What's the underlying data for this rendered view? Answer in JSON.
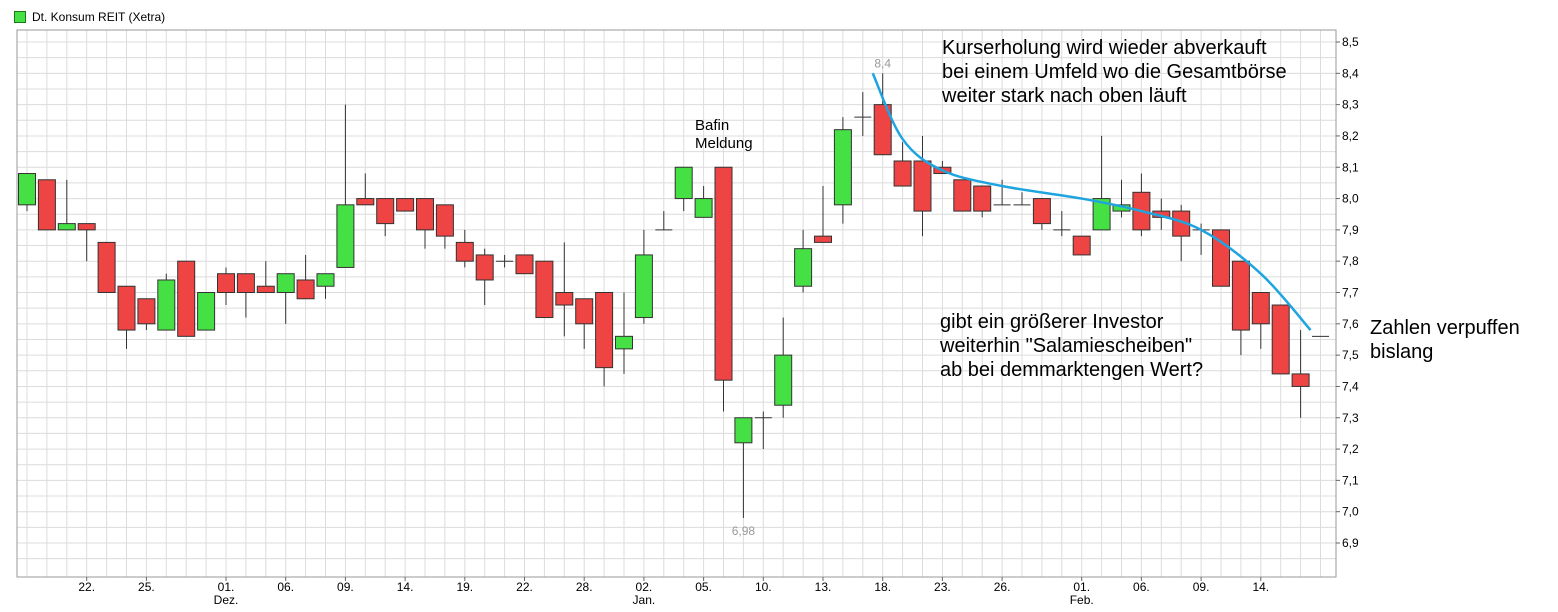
{
  "chart_data": {
    "type": "candlestick",
    "legend": {
      "label": "Dt. Konsum REIT (Xetra)",
      "color": "#44e044"
    },
    "ylim": [
      6.83,
      8.57
    ],
    "yticks": [
      "8,5",
      "8,4",
      "8,3",
      "8,2",
      "8,1",
      "8,0",
      "7,9",
      "7,8",
      "7,7",
      "7,6",
      "7,5",
      "7,4",
      "7,3",
      "7,2",
      "7,1",
      "7,0",
      "6,9"
    ],
    "ytick_values": [
      8.5,
      8.4,
      8.3,
      8.2,
      8.1,
      8.0,
      7.9,
      7.8,
      7.7,
      7.6,
      7.5,
      7.4,
      7.3,
      7.2,
      7.1,
      7.0,
      6.9
    ],
    "xticks": [
      {
        "i": 3,
        "label": "22."
      },
      {
        "i": 6,
        "label": "25."
      },
      {
        "i": 10,
        "label": "01.",
        "sub": "Dez."
      },
      {
        "i": 13,
        "label": "06."
      },
      {
        "i": 16,
        "label": "09."
      },
      {
        "i": 19,
        "label": "14."
      },
      {
        "i": 22,
        "label": "19."
      },
      {
        "i": 25,
        "label": "22."
      },
      {
        "i": 28,
        "label": "28."
      },
      {
        "i": 31,
        "label": "02.",
        "sub": "Jan."
      },
      {
        "i": 34,
        "label": "05."
      },
      {
        "i": 37,
        "label": "10."
      },
      {
        "i": 40,
        "label": "13."
      },
      {
        "i": 43,
        "label": "18."
      },
      {
        "i": 46,
        "label": "23."
      },
      {
        "i": 49,
        "label": "26."
      },
      {
        "i": 53,
        "label": "01.",
        "sub": "Feb."
      },
      {
        "i": 56,
        "label": "06."
      },
      {
        "i": 59,
        "label": "09."
      },
      {
        "i": 62,
        "label": "14."
      }
    ],
    "candles": [
      {
        "o": 7.98,
        "h": 8.08,
        "l": 7.96,
        "c": 8.08
      },
      {
        "o": 8.06,
        "h": 8.06,
        "l": 7.9,
        "c": 7.9
      },
      {
        "o": 7.9,
        "h": 8.06,
        "l": 7.9,
        "c": 7.92
      },
      {
        "o": 7.92,
        "h": 7.92,
        "l": 7.8,
        "c": 7.9
      },
      {
        "o": 7.86,
        "h": 7.86,
        "l": 7.7,
        "c": 7.7
      },
      {
        "o": 7.72,
        "h": 7.72,
        "l": 7.52,
        "c": 7.58
      },
      {
        "o": 7.68,
        "h": 7.68,
        "l": 7.58,
        "c": 7.6
      },
      {
        "o": 7.58,
        "h": 7.76,
        "l": 7.58,
        "c": 7.74
      },
      {
        "o": 7.8,
        "h": 7.8,
        "l": 7.56,
        "c": 7.56
      },
      {
        "o": 7.58,
        "h": 7.7,
        "l": 7.58,
        "c": 7.7
      },
      {
        "o": 7.76,
        "h": 7.78,
        "l": 7.66,
        "c": 7.7
      },
      {
        "o": 7.76,
        "h": 7.76,
        "l": 7.62,
        "c": 7.7
      },
      {
        "o": 7.72,
        "h": 7.8,
        "l": 7.7,
        "c": 7.7
      },
      {
        "o": 7.7,
        "h": 7.76,
        "l": 7.6,
        "c": 7.76
      },
      {
        "o": 7.74,
        "h": 7.82,
        "l": 7.68,
        "c": 7.68
      },
      {
        "o": 7.72,
        "h": 7.76,
        "l": 7.68,
        "c": 7.76
      },
      {
        "o": 7.78,
        "h": 8.3,
        "l": 7.78,
        "c": 7.98
      },
      {
        "o": 8.0,
        "h": 8.08,
        "l": 7.98,
        "c": 7.98
      },
      {
        "o": 8.0,
        "h": 8.0,
        "l": 7.88,
        "c": 7.92
      },
      {
        "o": 8.0,
        "h": 8.0,
        "l": 7.96,
        "c": 7.96
      },
      {
        "o": 8.0,
        "h": 8.0,
        "l": 7.84,
        "c": 7.9
      },
      {
        "o": 7.98,
        "h": 7.98,
        "l": 7.84,
        "c": 7.88
      },
      {
        "o": 7.86,
        "h": 7.9,
        "l": 7.78,
        "c": 7.8
      },
      {
        "o": 7.82,
        "h": 7.84,
        "l": 7.66,
        "c": 7.74
      },
      {
        "o": 7.8,
        "h": 7.82,
        "l": 7.78,
        "c": 7.8
      },
      {
        "o": 7.82,
        "h": 7.82,
        "l": 7.76,
        "c": 7.76
      },
      {
        "o": 7.8,
        "h": 7.8,
        "l": 7.62,
        "c": 7.62
      },
      {
        "o": 7.7,
        "h": 7.86,
        "l": 7.56,
        "c": 7.66
      },
      {
        "o": 7.68,
        "h": 7.68,
        "l": 7.52,
        "c": 7.6
      },
      {
        "o": 7.7,
        "h": 7.7,
        "l": 7.4,
        "c": 7.46
      },
      {
        "o": 7.52,
        "h": 7.7,
        "l": 7.44,
        "c": 7.56
      },
      {
        "o": 7.62,
        "h": 7.9,
        "l": 7.6,
        "c": 7.82
      },
      {
        "o": 7.9,
        "h": 7.96,
        "l": 7.9,
        "c": 7.9
      },
      {
        "o": 8.0,
        "h": 8.1,
        "l": 7.96,
        "c": 8.1
      },
      {
        "o": 7.94,
        "h": 8.04,
        "l": 7.94,
        "c": 8.0
      },
      {
        "o": 8.1,
        "h": 8.1,
        "l": 7.32,
        "c": 7.42
      },
      {
        "o": 7.22,
        "h": 7.3,
        "l": 6.98,
        "c": 7.3
      },
      {
        "o": 7.3,
        "h": 7.32,
        "l": 7.2,
        "c": 7.3
      },
      {
        "o": 7.34,
        "h": 7.62,
        "l": 7.3,
        "c": 7.5
      },
      {
        "o": 7.72,
        "h": 7.9,
        "l": 7.7,
        "c": 7.84
      },
      {
        "o": 7.88,
        "h": 8.04,
        "l": 7.86,
        "c": 7.86
      },
      {
        "o": 7.98,
        "h": 8.26,
        "l": 7.92,
        "c": 8.22
      },
      {
        "o": 8.26,
        "h": 8.34,
        "l": 8.2,
        "c": 8.26
      },
      {
        "o": 8.3,
        "h": 8.4,
        "l": 8.14,
        "c": 8.14
      },
      {
        "o": 8.12,
        "h": 8.18,
        "l": 8.04,
        "c": 8.04
      },
      {
        "o": 8.12,
        "h": 8.2,
        "l": 7.88,
        "c": 7.96
      },
      {
        "o": 8.1,
        "h": 8.12,
        "l": 8.08,
        "c": 8.08
      },
      {
        "o": 8.06,
        "h": 8.06,
        "l": 7.96,
        "c": 7.96
      },
      {
        "o": 8.04,
        "h": 8.04,
        "l": 7.94,
        "c": 7.96
      },
      {
        "o": 7.98,
        "h": 8.06,
        "l": 7.98,
        "c": 7.98
      },
      {
        "o": 7.98,
        "h": 8.02,
        "l": 7.98,
        "c": 7.98
      },
      {
        "o": 8.0,
        "h": 8.0,
        "l": 7.9,
        "c": 7.92
      },
      {
        "o": 7.9,
        "h": 7.96,
        "l": 7.88,
        "c": 7.9
      },
      {
        "o": 7.88,
        "h": 7.88,
        "l": 7.82,
        "c": 7.82
      },
      {
        "o": 7.9,
        "h": 8.2,
        "l": 7.9,
        "c": 8.0
      },
      {
        "o": 7.96,
        "h": 8.06,
        "l": 7.94,
        "c": 7.98
      },
      {
        "o": 8.02,
        "h": 8.08,
        "l": 7.88,
        "c": 7.9
      },
      {
        "o": 7.96,
        "h": 8.0,
        "l": 7.9,
        "c": 7.94
      },
      {
        "o": 7.96,
        "h": 7.98,
        "l": 7.8,
        "c": 7.88
      },
      {
        "o": 7.9,
        "h": 7.92,
        "l": 7.82,
        "c": 7.9
      },
      {
        "o": 7.9,
        "h": 7.9,
        "l": 7.72,
        "c": 7.72
      },
      {
        "o": 7.8,
        "h": 7.8,
        "l": 7.5,
        "c": 7.58
      },
      {
        "o": 7.7,
        "h": 7.7,
        "l": 7.52,
        "c": 7.6
      },
      {
        "o": 7.66,
        "h": 7.66,
        "l": 7.44,
        "c": 7.44
      },
      {
        "o": 7.44,
        "h": 7.58,
        "l": 7.3,
        "c": 7.4
      },
      {
        "o": 7.56,
        "h": 7.56,
        "l": 7.56,
        "c": 7.56
      }
    ],
    "extremes": {
      "high": {
        "i": 43,
        "value": 8.4,
        "label": "8,4"
      },
      "low": {
        "i": 36,
        "value": 6.98,
        "label": "6,98"
      }
    },
    "trend_curve": [
      [
        42.5,
        8.4
      ],
      [
        44,
        8.19
      ],
      [
        46,
        8.09
      ],
      [
        49,
        8.04
      ],
      [
        53,
        8.0
      ],
      [
        56,
        7.96
      ],
      [
        59,
        7.9
      ],
      [
        62,
        7.76
      ],
      [
        64.5,
        7.58
      ]
    ],
    "colors": {
      "up": "#44e044",
      "down": "#ee4444",
      "outline": "#333333",
      "grid": "#dcdcdc",
      "curve": "#1ea5e0",
      "extreme_label": "#999999"
    }
  },
  "annotations": {
    "bafin": "Bafin\nMeldung",
    "top_right": "Kurserholung wird wieder abverkauft\nbei einem Umfeld wo die Gesamtbörse\nweiter stark nach oben läuft",
    "mid_right": "gibt ein größerer Investor\nweiterhin \"Salamiescheiben\"\nab bei demmarktengen Wert?",
    "far_right": "Zahlen verpuffen\nbislang"
  }
}
